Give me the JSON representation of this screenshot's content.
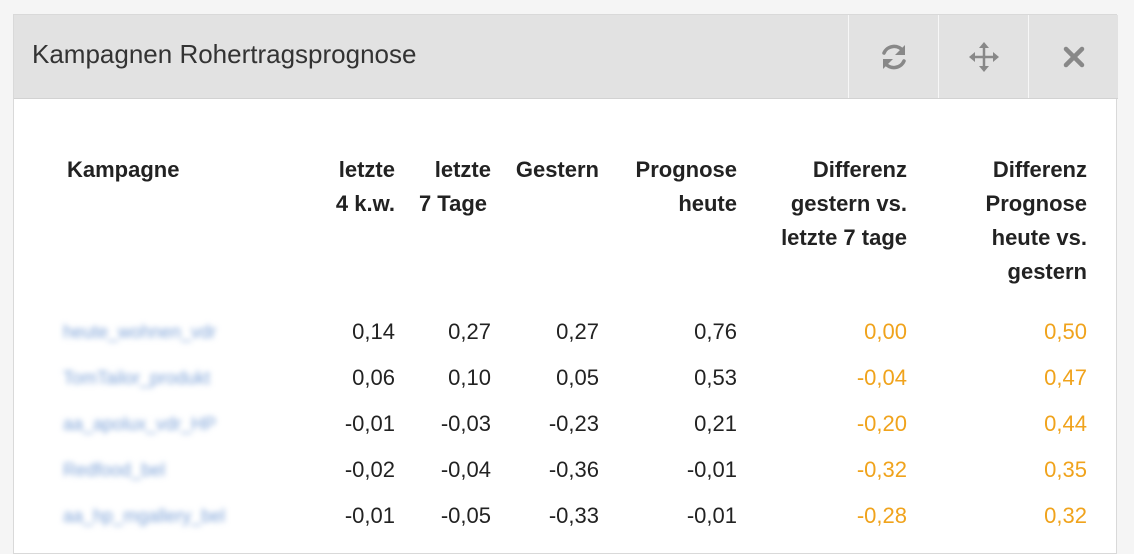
{
  "widget": {
    "title": "Kampagnen Rohertragsprognose",
    "buttons": [
      {
        "name": "refresh",
        "icon": "refresh-icon"
      },
      {
        "name": "move",
        "icon": "move-icon"
      },
      {
        "name": "close",
        "icon": "close-icon"
      }
    ]
  },
  "table": {
    "headers": {
      "kampagne": "Kampagne",
      "letzte_4kw_l1": "letzte",
      "letzte_4kw_l2": "4 k.w.",
      "letzte_7_l1": "letzte",
      "letzte_7_l2": "7 Tage",
      "gestern": "Gestern",
      "prognose_l1": "Prognose",
      "prognose_l2": "heute",
      "diff1_l1": "Differenz",
      "diff1_l2": "gestern vs.",
      "diff1_l3": "letzte 7 tage",
      "diff2_l1": "Differenz",
      "diff2_l2": "Prognose",
      "diff2_l3": "heute vs.",
      "diff2_l4": "gestern"
    },
    "rows": [
      {
        "kampagne": "heute_wohnen_vdr",
        "letzte_4kw": "0,14",
        "letzte_7": "0,27",
        "gestern": "0,27",
        "prognose": "0,76",
        "diff1": "0,00",
        "diff2": "0,50"
      },
      {
        "kampagne": "TomTailor_produkt",
        "letzte_4kw": "0,06",
        "letzte_7": "0,10",
        "gestern": "0,05",
        "prognose": "0,53",
        "diff1": "-0,04",
        "diff2": "0,47"
      },
      {
        "kampagne": "aa_apolux_vdr_HP",
        "letzte_4kw": "-0,01",
        "letzte_7": "-0,03",
        "gestern": "-0,23",
        "prognose": "0,21",
        "diff1": "-0,20",
        "diff2": "0,44"
      },
      {
        "kampagne": "Redfood_bel",
        "letzte_4kw": "-0,02",
        "letzte_7": "-0,04",
        "gestern": "-0,36",
        "prognose": "-0,01",
        "diff1": "-0,32",
        "diff2": "0,35"
      },
      {
        "kampagne": "aa_hp_mgallery_bel",
        "letzte_4kw": "-0,01",
        "letzte_7": "-0,05",
        "gestern": "-0,33",
        "prognose": "-0,01",
        "diff1": "-0,28",
        "diff2": "0,32"
      }
    ]
  },
  "colors": {
    "header_bg": "#e2e2e2",
    "diff_text": "#f0a31c",
    "campaign_link": "#7ea3d8",
    "icon": "#888888"
  }
}
